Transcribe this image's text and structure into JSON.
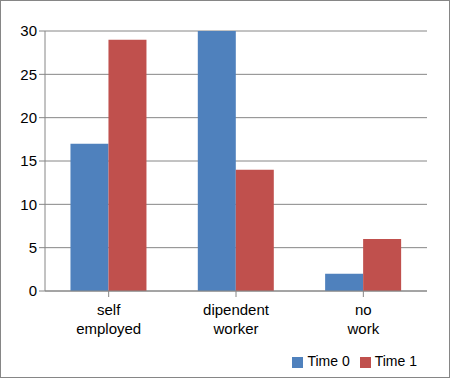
{
  "chart_data": {
    "type": "bar",
    "categories": [
      "self employed",
      "dipendent worker",
      "no work"
    ],
    "series": [
      {
        "name": "Time 0",
        "color": "#4F81BD",
        "values": [
          17,
          30,
          2
        ]
      },
      {
        "name": "Time 1",
        "color": "#C0504D",
        "values": [
          29,
          14,
          6
        ]
      }
    ],
    "ylim": [
      0,
      30
    ],
    "yticks": [
      0,
      5,
      10,
      15,
      20,
      25,
      30
    ],
    "grid": true,
    "legend": "bottom right"
  }
}
